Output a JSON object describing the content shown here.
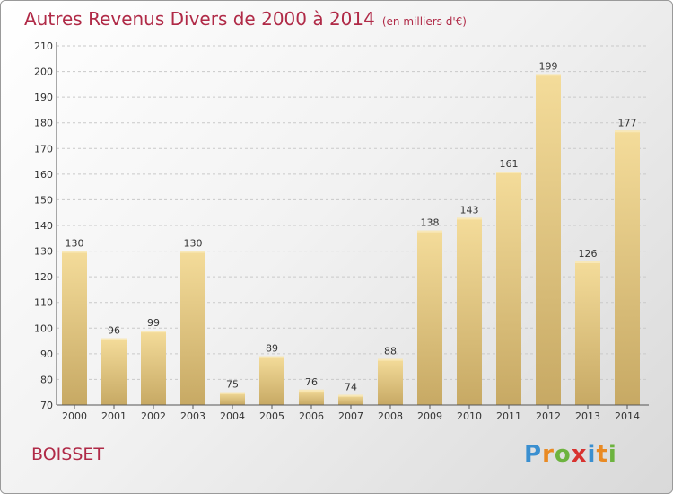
{
  "title": "Autres Revenus Divers de 2000 à 2014",
  "unit": "(en milliers d'€)",
  "commune": "BOISSET",
  "logo": "Proxiti",
  "chart_data": {
    "type": "bar",
    "categories": [
      "2000",
      "2001",
      "2002",
      "2003",
      "2004",
      "2005",
      "2006",
      "2007",
      "2008",
      "2009",
      "2010",
      "2011",
      "2012",
      "2013",
      "2014"
    ],
    "values": [
      130,
      96,
      99,
      130,
      75,
      89,
      76,
      74,
      88,
      138,
      143,
      161,
      199,
      126,
      177
    ],
    "ylim": [
      70,
      210
    ],
    "yticks": [
      70,
      80,
      90,
      100,
      110,
      120,
      130,
      140,
      150,
      160,
      170,
      180,
      190,
      200,
      210
    ],
    "grid": true,
    "bar_color": "#e2c57e"
  }
}
